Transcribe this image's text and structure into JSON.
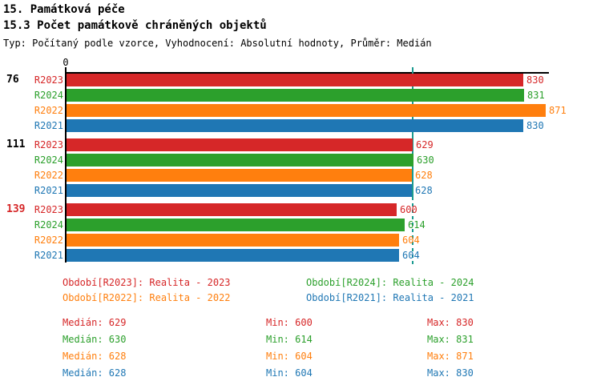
{
  "header": {
    "title_line1": "15. Památková péče",
    "title_line2": "15.3 Počet památkově chráněných objektů",
    "subtitle": "Typ: Počítaný podle vzorce, Vyhodnocení: Absolutní hodnoty, Průměr: Medián"
  },
  "chart_data": {
    "type": "bar",
    "orientation": "horizontal",
    "title": "15.3 Počet památkově chráněných objektů",
    "x_axis": {
      "origin_tick": "0",
      "min": 0,
      "grid": false
    },
    "median_line": {
      "value": 629,
      "color": "#1a9a90",
      "style": "solid-then-dashed"
    },
    "categories": [
      "76",
      "111",
      "139"
    ],
    "highlighted_category": "139",
    "series": [
      {
        "name": "R2023",
        "color": "#d62728",
        "values": [
          830,
          629,
          600
        ],
        "legend": "Období[R2023]: Realita - 2023",
        "median": 629,
        "min": 600,
        "max": 830
      },
      {
        "name": "R2024",
        "color": "#2ca02c",
        "values": [
          831,
          630,
          614
        ],
        "legend": "Období[R2024]: Realita - 2024",
        "median": 630,
        "min": 614,
        "max": 831
      },
      {
        "name": "R2022",
        "color": "#ff7f0e",
        "values": [
          871,
          628,
          604
        ],
        "legend": "Období[R2022]: Realita - 2022",
        "median": 628,
        "min": 604,
        "max": 871
      },
      {
        "name": "R2021",
        "color": "#1f77b4",
        "values": [
          830,
          628,
          604
        ],
        "legend": "Období[R2021]: Realita - 2021",
        "median": 628,
        "min": 604,
        "max": 830
      }
    ],
    "stats_labels": {
      "median": "Medián",
      "min": "Min",
      "max": "Max"
    },
    "legend_position": "bottom"
  }
}
